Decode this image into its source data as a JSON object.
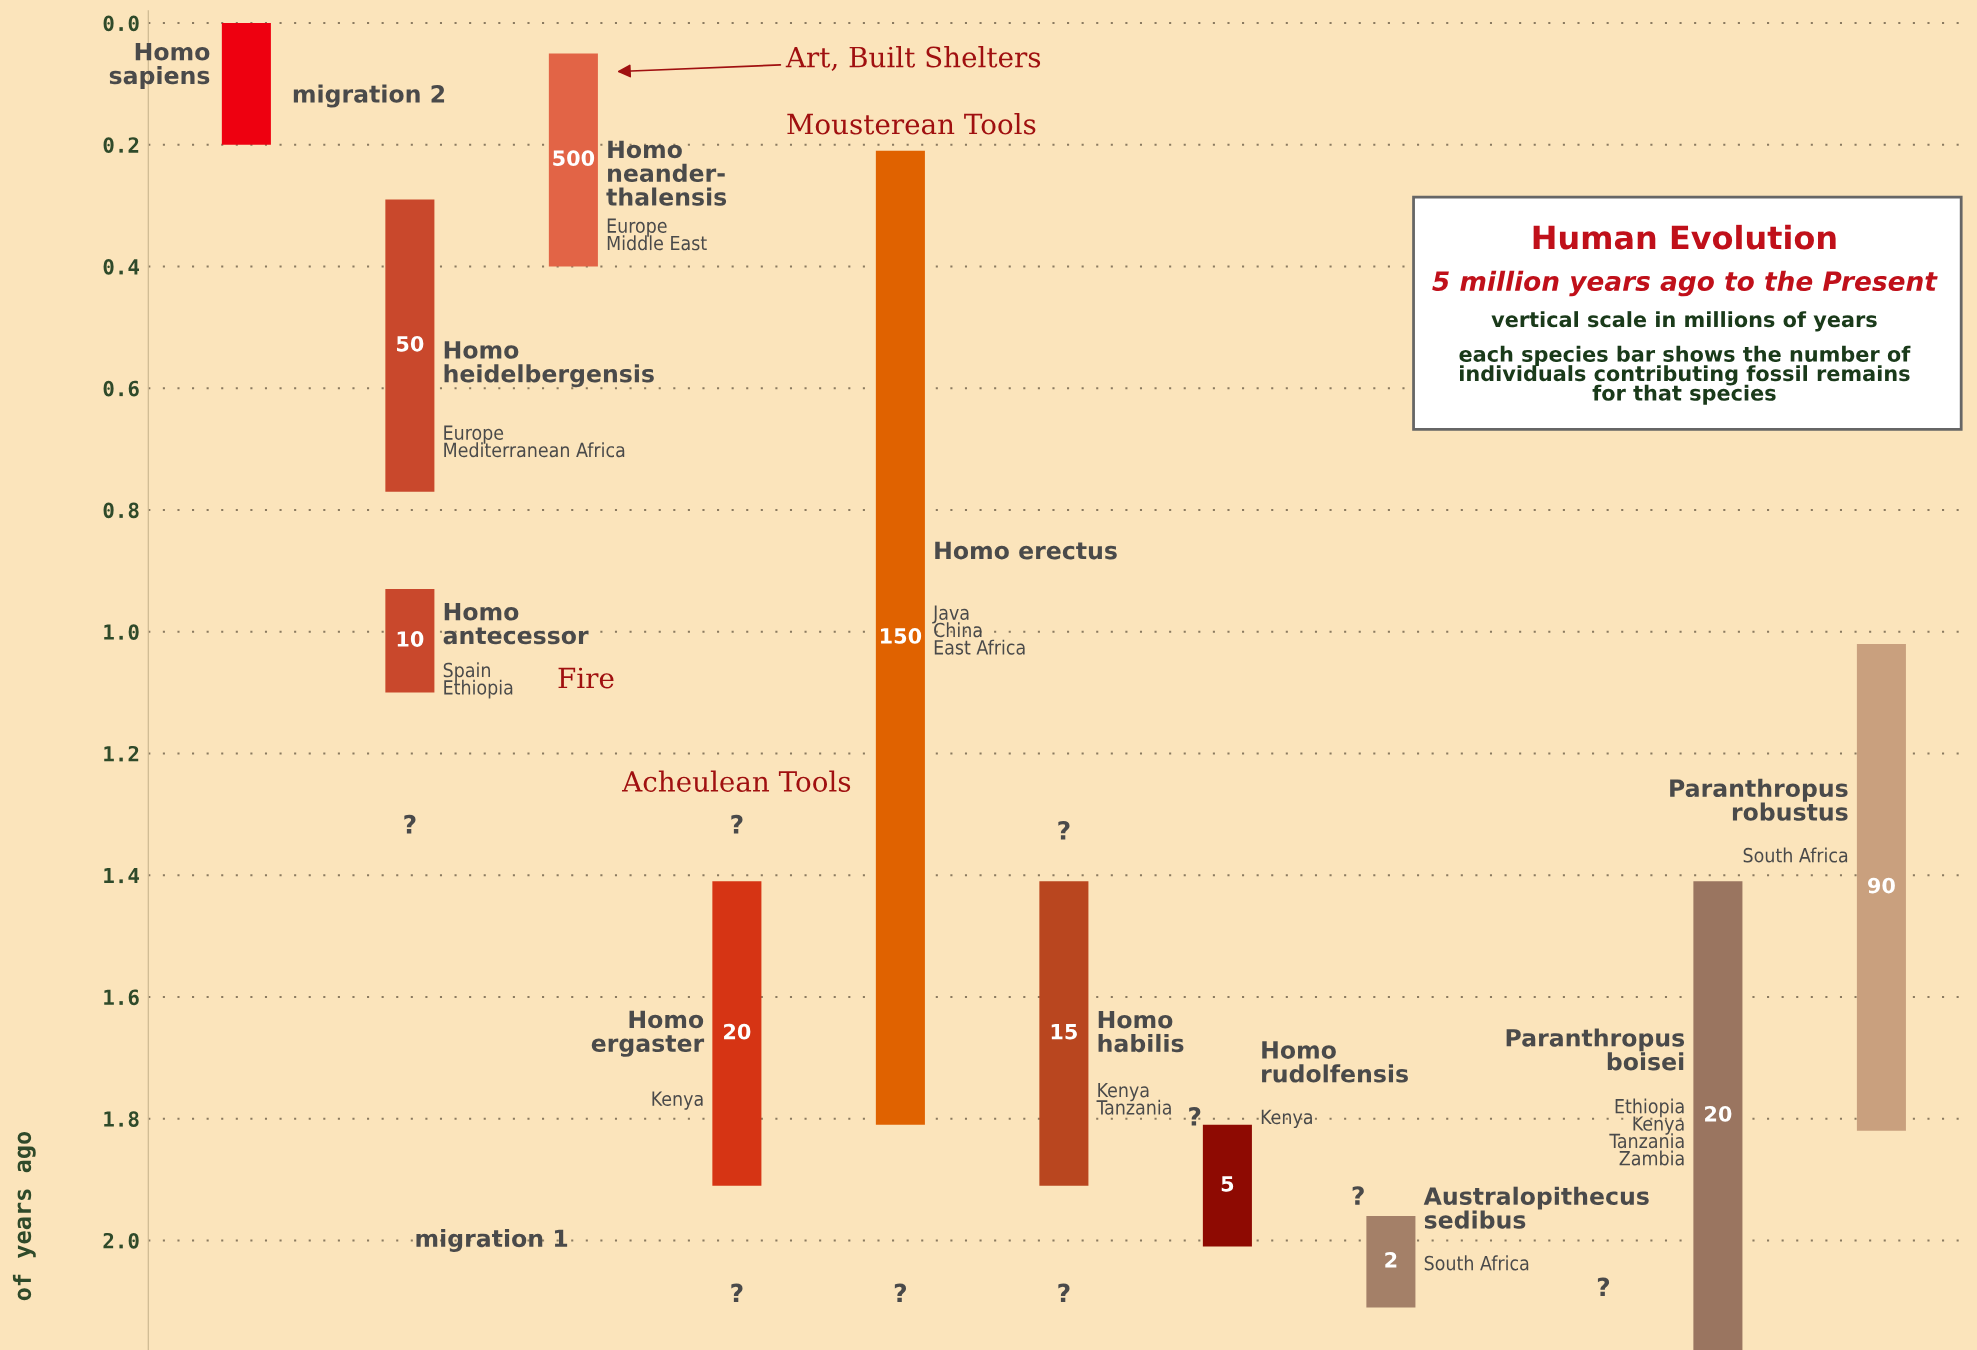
{
  "chart_data": {
    "type": "bar",
    "title": "Human Evolution",
    "subtitle": "5 million years ago to the Present",
    "ylabel": "of years ago",
    "categories": [
      null,
      null,
      null,
      null,
      null,
      null,
      null,
      null,
      null,
      null,
      null
    ],
    "series": [
      {
        "values": [
          0.2,
          0.48,
          0.35,
          0.5,
          1.6,
          0.5,
          0.2,
          0.15,
          null,
          0.77,
          0.8
        ],
        "base": [
          0.0,
          0.29,
          0.05,
          1.41,
          0.21,
          1.41,
          1.81,
          1.96,
          null,
          1.41,
          1.02
        ],
        "colors": [
          "#ee0010",
          "#c9482c",
          "#e26446",
          "#d63414",
          "#e06200",
          "#b9461f",
          "#8e0a02",
          "#a48068",
          null,
          "#9a7560",
          "#c9a07e"
        ]
      },
      {
        "values": [
          null,
          0.17,
          null,
          null,
          null,
          null,
          null,
          null,
          null,
          null,
          null
        ],
        "base": [
          null,
          0.93,
          null,
          null,
          null,
          null,
          null,
          null,
          null,
          null,
          null
        ],
        "colors": [
          null,
          "#c9482c",
          null,
          null,
          null,
          null,
          null,
          null,
          null,
          null,
          null
        ]
      }
    ],
    "ylim": [
      2.18,
      -0.02
    ],
    "yticks": [
      {
        "value": 0,
        "label": "0.0"
      },
      {
        "value": 0.2,
        "label": "0.2"
      },
      {
        "value": 0.4,
        "label": "0.4"
      },
      {
        "value": 0.6,
        "label": "0.6"
      },
      {
        "value": 0.8,
        "label": "0.8"
      },
      {
        "value": 1,
        "label": "1.0"
      },
      {
        "value": 1.2,
        "label": "1.2"
      },
      {
        "value": 1.4,
        "label": "1.4"
      },
      {
        "value": 1.6,
        "label": "1.6"
      },
      {
        "value": 1.8,
        "label": "1.8"
      },
      {
        "value": 2,
        "label": "2.0"
      }
    ],
    "grid": "y",
    "tick_labels": "y",
    "annotations": [
      "Homo\nsapiens",
      "migration 2",
      "Homo\nneander-\nthalensis",
      "Europe\nMiddle East",
      "Art, Built Shelters",
      "Mousterean Tools",
      "Homo\nheidelbergensis",
      "Europe\nMediterranean Africa",
      "Homo\nantecessor",
      "Spain\nEthiopia",
      "Fire",
      "Acheulean Tools",
      "Homo erectus",
      "Java\nChina\nEast Africa",
      "Homo\nergaster",
      "Kenya",
      "Homo\nhabilis",
      "Kenya\nTanzania",
      "Homo\nrudolfensis",
      "Kenya",
      "Australopithecus\nsedibus",
      "South Africa",
      "Paranthropus\nboisei",
      "Ethiopia\nKenya\nTanzania\nZambia",
      "Paranthropus\nrobustus",
      "South Africa",
      "migration 1",
      "vertical scale in millions of years",
      "each species bar shows the number of\nindividuals contributing fossil remains\nfor that species",
      "?",
      "?",
      "?",
      "?",
      "?",
      "?",
      "?",
      "?",
      "?",
      "50",
      "500",
      "20",
      "150",
      "15",
      "5",
      "2",
      "20",
      "90",
      "10"
    ]
  }
}
